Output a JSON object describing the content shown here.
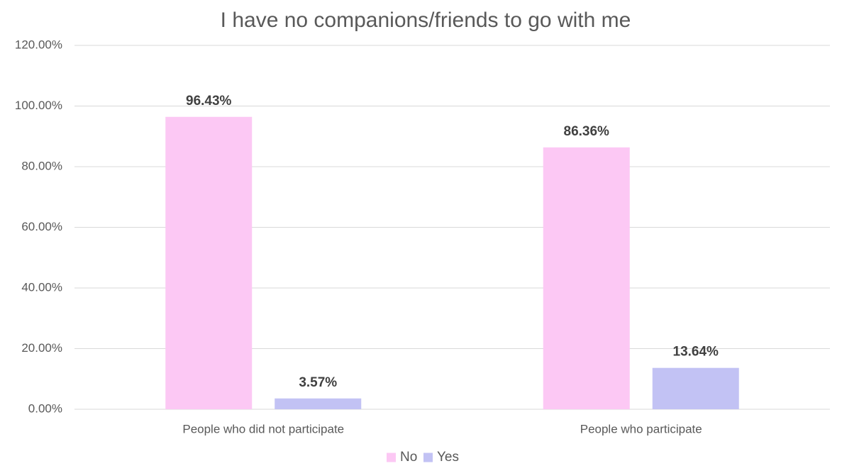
{
  "chart_data": {
    "type": "bar",
    "title": "I have no companions/friends to go with me",
    "categories": [
      "People who did not participate",
      "People who participate"
    ],
    "series": [
      {
        "name": "No",
        "values": [
          96.43,
          86.36
        ],
        "labels": [
          "96.43%",
          "86.36%"
        ],
        "color": "#fcc8f4"
      },
      {
        "name": "Yes",
        "values": [
          3.57,
          13.64
        ],
        "labels": [
          "3.57%",
          "13.64%"
        ],
        "color": "#c2c2f4"
      }
    ],
    "xlabel": "",
    "ylabel": "",
    "ylim": [
      0,
      120
    ],
    "yticks": [
      0,
      20,
      40,
      60,
      80,
      100,
      120
    ],
    "ytick_labels": [
      "0.00%",
      "20.00%",
      "40.00%",
      "60.00%",
      "80.00%",
      "100.00%",
      "120.00%"
    ],
    "grid": true,
    "legend_position": "bottom"
  }
}
